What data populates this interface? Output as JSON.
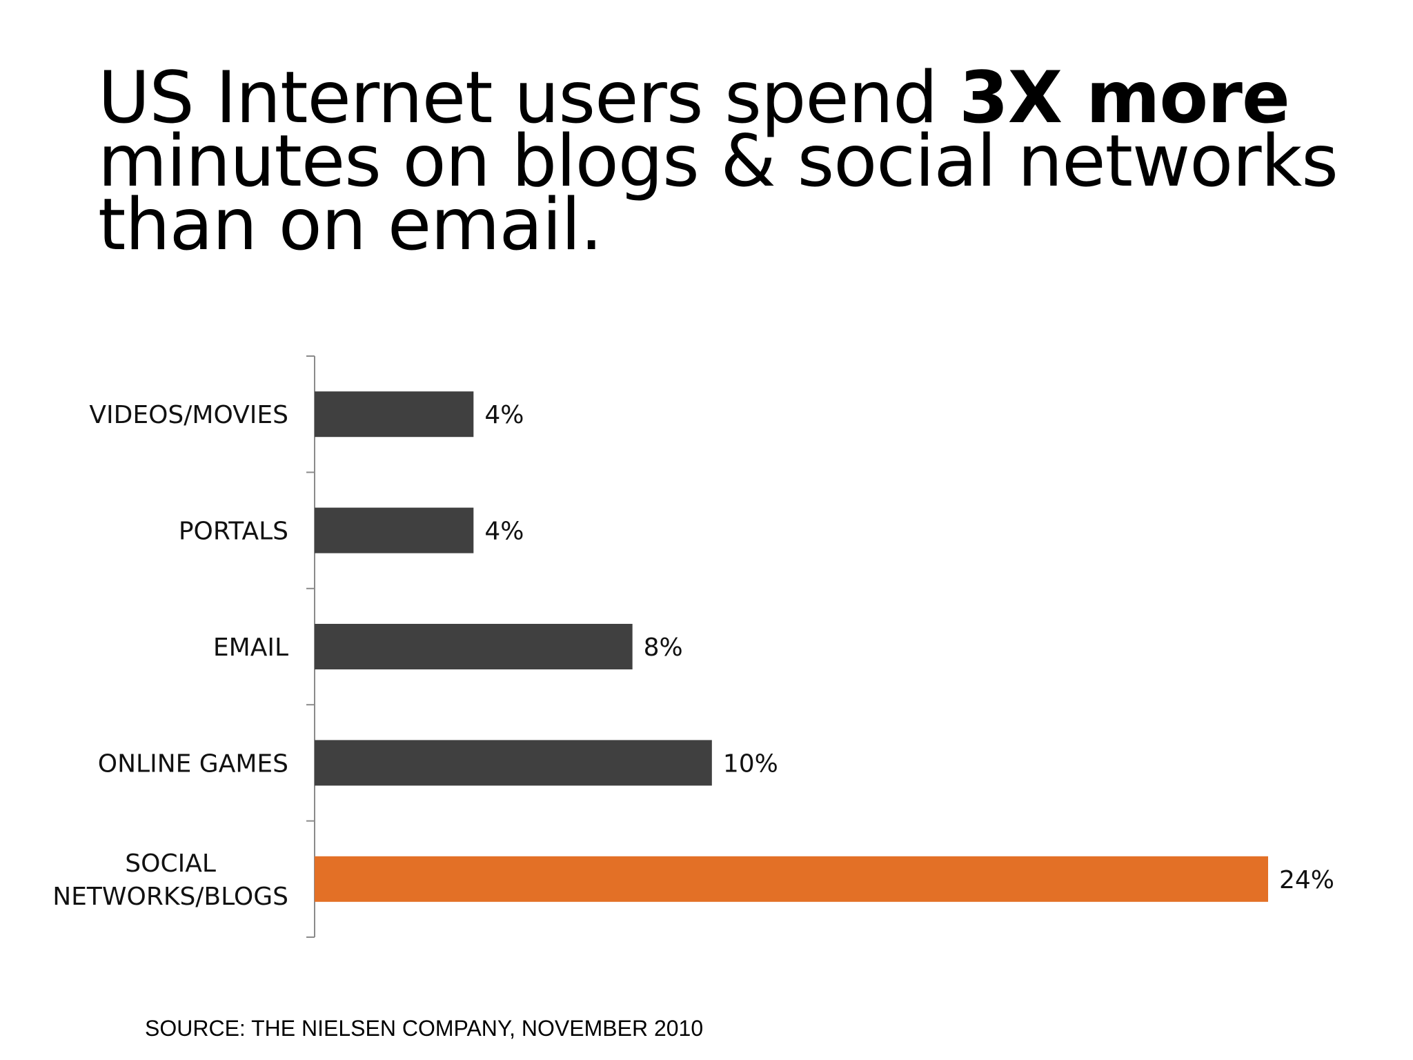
{
  "headline": {
    "part1": "US Internet users spend ",
    "emphasis": "3X more",
    "part2": " minutes on blogs & social networks than on email."
  },
  "source": "SOURCE: THE NIELSEN COMPANY, NOVEMBER 2010",
  "colors": {
    "bar_default": "#404040",
    "bar_highlight": "#E37026",
    "axis": "#8a8a8a"
  },
  "chart_data": {
    "type": "bar",
    "orientation": "horizontal",
    "title": "",
    "xlabel": "",
    "ylabel": "",
    "xlim": [
      0,
      24
    ],
    "grid": false,
    "legend": "none",
    "categories": [
      [
        "VIDEOS/MOVIES"
      ],
      [
        "PORTALS"
      ],
      [
        "EMAIL"
      ],
      [
        "ONLINE GAMES"
      ],
      [
        "SOCIAL",
        "NETWORKS/BLOGS"
      ]
    ],
    "values": [
      4,
      4,
      8,
      10,
      24
    ],
    "value_labels": [
      "4%",
      "4%",
      "8%",
      "10%",
      "24%"
    ],
    "highlight_index": 4
  }
}
